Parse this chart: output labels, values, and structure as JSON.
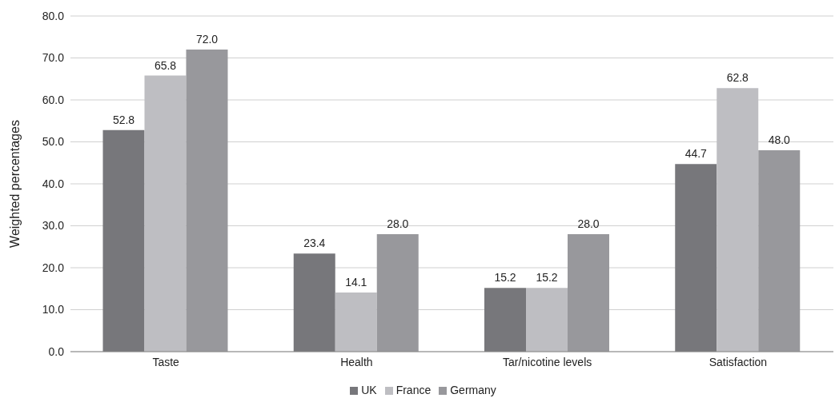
{
  "chart_data": {
    "type": "bar",
    "ylabel": "Weighted percentages",
    "categories": [
      "Taste",
      "Health",
      "Tar/nicotine levels",
      "Satisfaction"
    ],
    "series": [
      {
        "name": "UK",
        "color": "#77777b",
        "values": [
          52.8,
          23.4,
          15.2,
          44.7
        ],
        "value_labels": [
          "52.8",
          "23.4",
          "15.2",
          "44.7"
        ]
      },
      {
        "name": "France",
        "color": "#bebec2",
        "values": [
          65.8,
          14.1,
          15.2,
          62.8
        ],
        "value_labels": [
          "65.8",
          "14.1",
          "15.2",
          "62.8"
        ]
      },
      {
        "name": "Germany",
        "color": "#98989c",
        "values": [
          72.0,
          28.0,
          28.0,
          48.0
        ],
        "value_labels": [
          "72.0",
          "28.0",
          "28.0",
          "48.0"
        ]
      }
    ],
    "ylim": [
      0,
      80
    ],
    "yticks": [
      {
        "value": 0,
        "label": "0.0"
      },
      {
        "value": 10,
        "label": "10.0"
      },
      {
        "value": 20,
        "label": "20.0"
      },
      {
        "value": 30,
        "label": "30.0"
      },
      {
        "value": 40,
        "label": "40.0"
      },
      {
        "value": 50,
        "label": "50.0"
      },
      {
        "value": 60,
        "label": "60.0"
      },
      {
        "value": 70,
        "label": "70.0"
      },
      {
        "value": 80,
        "label": "80.0"
      }
    ],
    "grid": "y",
    "legend": "bottom"
  }
}
